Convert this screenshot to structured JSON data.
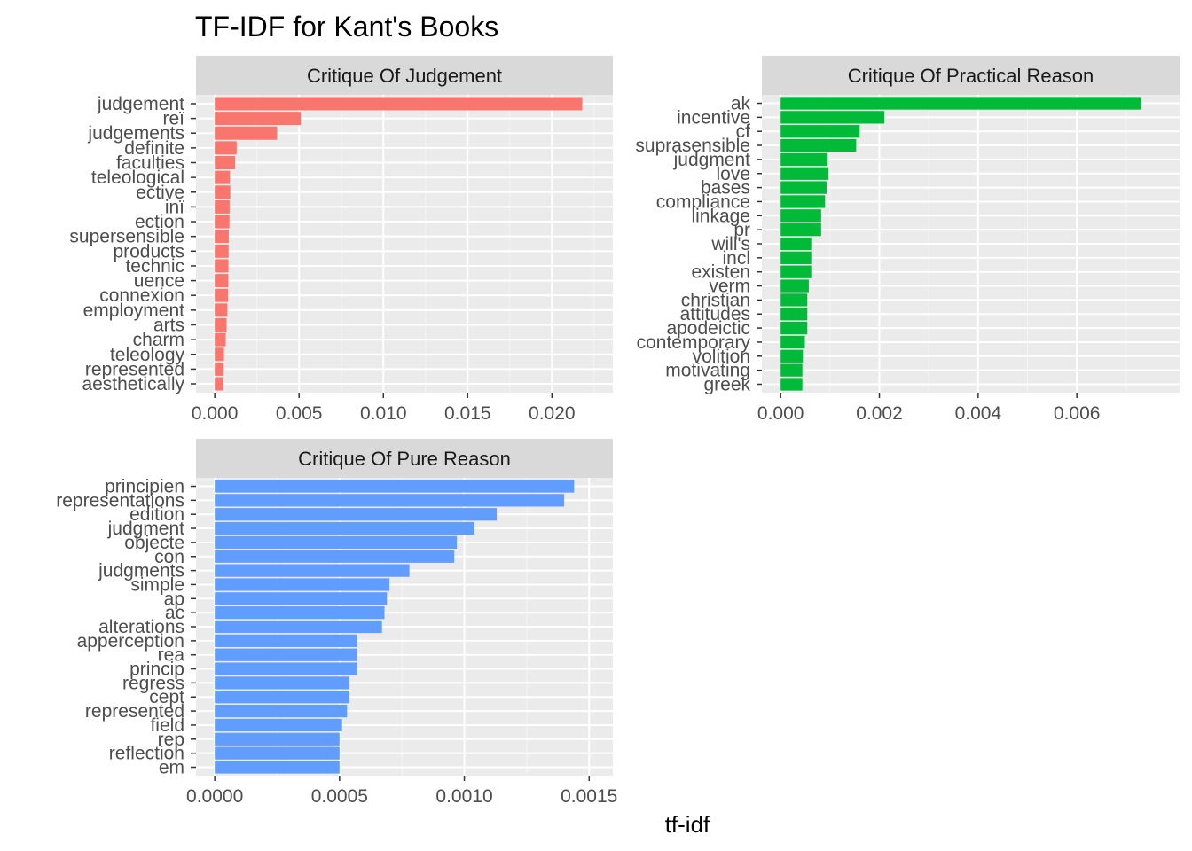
{
  "chart_data": {
    "title": "TF-IDF for Kant's Books",
    "xlabel": "tf-idf",
    "type": "bar",
    "orientation": "horizontal",
    "grid": true,
    "legend": "none",
    "panels": [
      {
        "name": "Critique Of Judgement",
        "color": "#F8766D",
        "xlim": [
          0,
          0.0225
        ],
        "ticks": [
          0,
          0.005,
          0.01,
          0.015,
          0.02
        ],
        "tick_labels": [
          "0.000",
          "0.005",
          "0.010",
          "0.015",
          "0.020"
        ],
        "categories": [
          "judgement",
          "reï",
          "judgements",
          "definite",
          "faculties",
          "teleological",
          "ective",
          "inï",
          "ection",
          "supersensible",
          "products",
          "technic",
          "uence",
          "connexion",
          "employment",
          "arts",
          "charm",
          "teleology",
          "represented",
          "aesthetically"
        ],
        "values": [
          0.0218,
          0.0051,
          0.0037,
          0.0013,
          0.0012,
          0.0009,
          0.00092,
          0.00088,
          0.00087,
          0.00083,
          0.00082,
          0.00081,
          0.0008,
          0.00078,
          0.00075,
          0.0007,
          0.00065,
          0.00055,
          0.00053,
          0.00052
        ]
      },
      {
        "name": "Critique Of Practical Reason",
        "color": "#00BA38",
        "xlim": [
          0,
          0.0077
        ],
        "ticks": [
          0,
          0.002,
          0.004,
          0.006
        ],
        "tick_labels": [
          "0.000",
          "0.002",
          "0.004",
          "0.006"
        ],
        "categories": [
          "ak",
          "incentive",
          "cf",
          "suprasensible",
          "judgment",
          "love",
          "bases",
          "compliance",
          "linkage",
          "pr",
          "will's",
          "incl",
          "existen",
          "verm",
          "christian",
          "attitudes",
          "apodeictic",
          "contemporary",
          "volition",
          "motivating",
          "greek"
        ],
        "values": [
          0.0073,
          0.0021,
          0.0016,
          0.00153,
          0.00095,
          0.00097,
          0.00093,
          0.0009,
          0.00082,
          0.00082,
          0.00062,
          0.00062,
          0.00062,
          0.00057,
          0.00054,
          0.00054,
          0.00054,
          0.00049,
          0.00045,
          0.00044,
          0.00044
        ]
      },
      {
        "name": "Critique Of Pure Reason",
        "color": "#619CFF",
        "xlim": [
          0,
          0.00152
        ],
        "ticks": [
          0,
          0.0005,
          0.001,
          0.0015
        ],
        "tick_labels": [
          "0.0000",
          "0.0005",
          "0.0010",
          "0.0015"
        ],
        "categories": [
          "principien",
          "representations",
          "edition",
          "judgment",
          "objecte",
          "con",
          "judgments",
          "simple",
          "ap",
          "ac",
          "alterations",
          "apperception",
          "rea",
          "princip",
          "regress",
          "cept",
          "represented",
          "field",
          "rep",
          "reflection",
          "em"
        ],
        "values": [
          0.00144,
          0.0014,
          0.00113,
          0.00104,
          0.00097,
          0.00096,
          0.00078,
          0.0007,
          0.00069,
          0.00068,
          0.00067,
          0.00057,
          0.00057,
          0.00057,
          0.00054,
          0.00054,
          0.00053,
          0.00051,
          0.0005,
          0.0005,
          0.0005
        ]
      }
    ]
  }
}
